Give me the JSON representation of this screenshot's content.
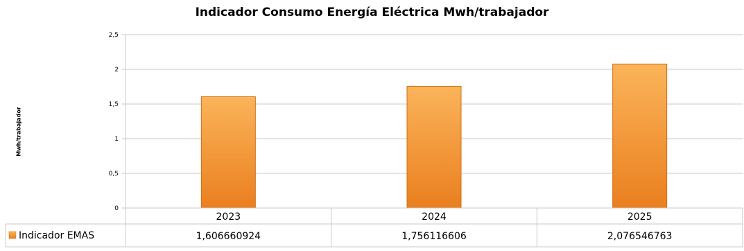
{
  "chart_data": {
    "type": "bar",
    "title": "Indicador Consumo Energía Eléctrica Mwh/trabajador",
    "ylabel": "Mwh/trabajador",
    "xlabel": "",
    "categories": [
      "2023",
      "2024",
      "2025"
    ],
    "series": [
      {
        "name": "Indicador EMAS",
        "values": [
          1.606660924,
          1.756116606,
          2.076546763
        ],
        "value_labels": [
          "1,606660924",
          "1,756116606",
          "2,076546763"
        ]
      }
    ],
    "ylim": [
      0,
      2.5
    ],
    "yticks": [
      0,
      0.5,
      1,
      1.5,
      2,
      2.5
    ],
    "ytick_labels": [
      "0",
      "0,5",
      "1",
      "1,5",
      "2",
      "2,5"
    ],
    "grid": true,
    "legend": "data-table-left",
    "colors": {
      "bar_light": "#fbb45a",
      "bar_dark": "#ea7f1f",
      "bar_edge": "#d06f17",
      "grid": "#c8c8c8"
    }
  }
}
